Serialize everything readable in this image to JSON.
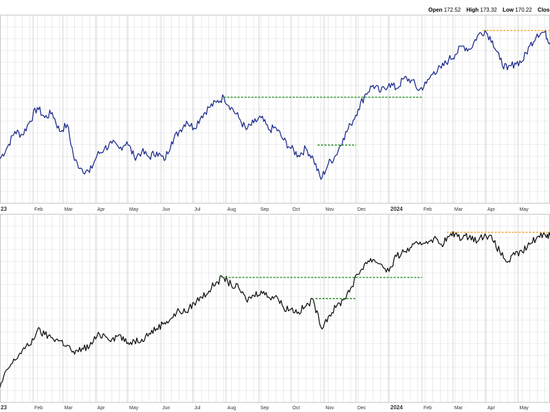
{
  "header": {
    "open_label": "Open",
    "open_value": "172.52",
    "high_label": "High",
    "high_value": "173.32",
    "low_label": "Low",
    "low_value": "170.22",
    "close_label": "Close"
  },
  "colors": {
    "upper_line": "#1c2b8c",
    "lower_line": "#111111",
    "green_level": "#1a8c1a",
    "orange_level": "#f0a020",
    "grid": "#dcdcdc"
  },
  "chart_data": [
    {
      "type": "line",
      "panel": "upper",
      "x_tick_labels": [
        "23",
        "Feb",
        "Mar",
        "Apr",
        "May",
        "Jun",
        "Jul",
        "Aug",
        "Sep",
        "Oct",
        "Nov",
        "Dec",
        "2024",
        "Feb",
        "Mar",
        "Apr",
        "May"
      ],
      "x_range": [
        "2023-01-01",
        "2024-05-31"
      ],
      "y_axis_labels_visible": false,
      "grid": true,
      "series": [
        {
          "points": [
            [
              "2023-01-01",
              0.56
            ],
            [
              "2023-01-08",
              0.63
            ],
            [
              "2023-01-15",
              0.72
            ],
            [
              "2023-01-22",
              0.7
            ],
            [
              "2023-01-29",
              0.78
            ],
            [
              "2023-02-05",
              0.86
            ],
            [
              "2023-02-12",
              0.8
            ],
            [
              "2023-02-19",
              0.83
            ],
            [
              "2023-02-26",
              0.72
            ],
            [
              "2023-03-05",
              0.76
            ],
            [
              "2023-03-12",
              0.55
            ],
            [
              "2023-03-19",
              0.5
            ],
            [
              "2023-03-26",
              0.48
            ],
            [
              "2023-04-02",
              0.58
            ],
            [
              "2023-04-09",
              0.62
            ],
            [
              "2023-04-16",
              0.65
            ],
            [
              "2023-04-23",
              0.62
            ],
            [
              "2023-04-30",
              0.66
            ],
            [
              "2023-05-07",
              0.57
            ],
            [
              "2023-05-14",
              0.6
            ],
            [
              "2023-05-21",
              0.57
            ],
            [
              "2023-05-28",
              0.6
            ],
            [
              "2023-06-04",
              0.55
            ],
            [
              "2023-06-11",
              0.66
            ],
            [
              "2023-06-18",
              0.72
            ],
            [
              "2023-06-25",
              0.78
            ],
            [
              "2023-07-02",
              0.74
            ],
            [
              "2023-07-09",
              0.81
            ],
            [
              "2023-07-16",
              0.86
            ],
            [
              "2023-07-23",
              0.89
            ],
            [
              "2023-07-30",
              0.92
            ],
            [
              "2023-08-06",
              0.86
            ],
            [
              "2023-08-13",
              0.8
            ],
            [
              "2023-08-20",
              0.73
            ],
            [
              "2023-08-27",
              0.77
            ],
            [
              "2023-09-03",
              0.8
            ],
            [
              "2023-09-10",
              0.73
            ],
            [
              "2023-09-17",
              0.74
            ],
            [
              "2023-09-24",
              0.67
            ],
            [
              "2023-10-01",
              0.62
            ],
            [
              "2023-10-08",
              0.58
            ],
            [
              "2023-10-15",
              0.62
            ],
            [
              "2023-10-22",
              0.56
            ],
            [
              "2023-10-29",
              0.44
            ],
            [
              "2023-11-05",
              0.53
            ],
            [
              "2023-11-12",
              0.58
            ],
            [
              "2023-11-19",
              0.68
            ],
            [
              "2023-11-26",
              0.76
            ],
            [
              "2023-12-03",
              0.85
            ],
            [
              "2023-12-10",
              0.94
            ],
            [
              "2023-12-17",
              0.99
            ],
            [
              "2023-12-24",
              0.95
            ],
            [
              "2024-01-01",
              1.0
            ],
            [
              "2024-01-08",
              0.97
            ],
            [
              "2024-01-15",
              1.03
            ],
            [
              "2024-01-22",
              1.02
            ],
            [
              "2024-01-29",
              0.96
            ],
            [
              "2024-02-05",
              1.0
            ],
            [
              "2024-02-12",
              1.07
            ],
            [
              "2024-02-19",
              1.09
            ],
            [
              "2024-02-26",
              1.14
            ],
            [
              "2024-03-03",
              1.17
            ],
            [
              "2024-03-10",
              1.22
            ],
            [
              "2024-03-17",
              1.2
            ],
            [
              "2024-03-24",
              1.28
            ],
            [
              "2024-03-31",
              1.31
            ],
            [
              "2024-04-07",
              1.25
            ],
            [
              "2024-04-14",
              1.14
            ],
            [
              "2024-04-21",
              1.08
            ],
            [
              "2024-04-28",
              1.12
            ],
            [
              "2024-05-05",
              1.13
            ],
            [
              "2024-05-12",
              1.22
            ],
            [
              "2024-05-19",
              1.29
            ],
            [
              "2024-05-26",
              1.3
            ],
            [
              "2024-05-31",
              1.24
            ]
          ]
        }
      ],
      "levels": [
        {
          "color": "green",
          "from": "2023-07-30",
          "to": "2024-02-01",
          "value": 0.92
        },
        {
          "color": "green",
          "from": "2023-10-26",
          "to": "2023-12-01",
          "value": 0.64
        },
        {
          "color": "orange",
          "from": "2024-03-29",
          "to": "2024-05-31",
          "value": 1.31
        }
      ]
    },
    {
      "type": "line",
      "panel": "lower",
      "x_tick_labels": [
        "23",
        "Feb",
        "Mar",
        "Apr",
        "May",
        "Jun",
        "Jul",
        "Aug",
        "Sep",
        "Oct",
        "Nov",
        "Dec",
        "2024",
        "Feb",
        "Mar",
        "Apr",
        "May"
      ],
      "x_range": [
        "2023-01-01",
        "2024-05-31"
      ],
      "y_axis_labels_visible": false,
      "grid": true,
      "series": [
        {
          "points": [
            [
              "2023-01-01",
              0.2
            ],
            [
              "2023-01-08",
              0.32
            ],
            [
              "2023-01-15",
              0.38
            ],
            [
              "2023-01-22",
              0.45
            ],
            [
              "2023-01-29",
              0.48
            ],
            [
              "2023-02-05",
              0.58
            ],
            [
              "2023-02-12",
              0.55
            ],
            [
              "2023-02-19",
              0.53
            ],
            [
              "2023-02-26",
              0.51
            ],
            [
              "2023-03-05",
              0.48
            ],
            [
              "2023-03-12",
              0.42
            ],
            [
              "2023-03-19",
              0.46
            ],
            [
              "2023-03-26",
              0.47
            ],
            [
              "2023-04-02",
              0.54
            ],
            [
              "2023-04-09",
              0.55
            ],
            [
              "2023-04-16",
              0.52
            ],
            [
              "2023-04-23",
              0.55
            ],
            [
              "2023-04-30",
              0.49
            ],
            [
              "2023-05-07",
              0.51
            ],
            [
              "2023-05-14",
              0.52
            ],
            [
              "2023-05-21",
              0.56
            ],
            [
              "2023-05-28",
              0.59
            ],
            [
              "2023-06-04",
              0.63
            ],
            [
              "2023-06-11",
              0.66
            ],
            [
              "2023-06-18",
              0.71
            ],
            [
              "2023-06-25",
              0.7
            ],
            [
              "2023-07-02",
              0.76
            ],
            [
              "2023-07-09",
              0.8
            ],
            [
              "2023-07-16",
              0.84
            ],
            [
              "2023-07-23",
              0.9
            ],
            [
              "2023-07-30",
              0.93
            ],
            [
              "2023-08-06",
              0.88
            ],
            [
              "2023-08-13",
              0.86
            ],
            [
              "2023-08-20",
              0.78
            ],
            [
              "2023-08-27",
              0.81
            ],
            [
              "2023-09-03",
              0.84
            ],
            [
              "2023-09-10",
              0.8
            ],
            [
              "2023-09-17",
              0.81
            ],
            [
              "2023-09-24",
              0.73
            ],
            [
              "2023-10-01",
              0.72
            ],
            [
              "2023-10-08",
              0.7
            ],
            [
              "2023-10-15",
              0.74
            ],
            [
              "2023-10-22",
              0.78
            ],
            [
              "2023-10-29",
              0.6
            ],
            [
              "2023-11-05",
              0.67
            ],
            [
              "2023-11-12",
              0.73
            ],
            [
              "2023-11-19",
              0.78
            ],
            [
              "2023-11-26",
              0.86
            ],
            [
              "2023-12-03",
              0.95
            ],
            [
              "2023-12-10",
              1.03
            ],
            [
              "2023-12-17",
              1.05
            ],
            [
              "2023-12-24",
              1.02
            ],
            [
              "2024-01-01",
              0.97
            ],
            [
              "2024-01-08",
              1.07
            ],
            [
              "2024-01-15",
              1.1
            ],
            [
              "2024-01-22",
              1.13
            ],
            [
              "2024-01-29",
              1.15
            ],
            [
              "2024-02-05",
              1.17
            ],
            [
              "2024-02-12",
              1.19
            ],
            [
              "2024-02-19",
              1.15
            ],
            [
              "2024-02-26",
              1.2
            ],
            [
              "2024-03-03",
              1.22
            ],
            [
              "2024-03-10",
              1.19
            ],
            [
              "2024-03-17",
              1.21
            ],
            [
              "2024-03-24",
              1.17
            ],
            [
              "2024-03-31",
              1.22
            ],
            [
              "2024-04-07",
              1.18
            ],
            [
              "2024-04-14",
              1.1
            ],
            [
              "2024-04-21",
              1.03
            ],
            [
              "2024-04-28",
              1.08
            ],
            [
              "2024-05-05",
              1.1
            ],
            [
              "2024-05-12",
              1.15
            ],
            [
              "2024-05-19",
              1.2
            ],
            [
              "2024-05-26",
              1.22
            ],
            [
              "2024-05-31",
              1.21
            ]
          ]
        }
      ],
      "levels": [
        {
          "color": "green",
          "from": "2023-07-28",
          "to": "2024-02-01",
          "value": 0.93
        },
        {
          "color": "green",
          "from": "2023-10-24",
          "to": "2023-12-01",
          "value": 0.79
        },
        {
          "color": "orange",
          "from": "2024-02-24",
          "to": "2024-05-31",
          "value": 1.23
        }
      ]
    }
  ]
}
